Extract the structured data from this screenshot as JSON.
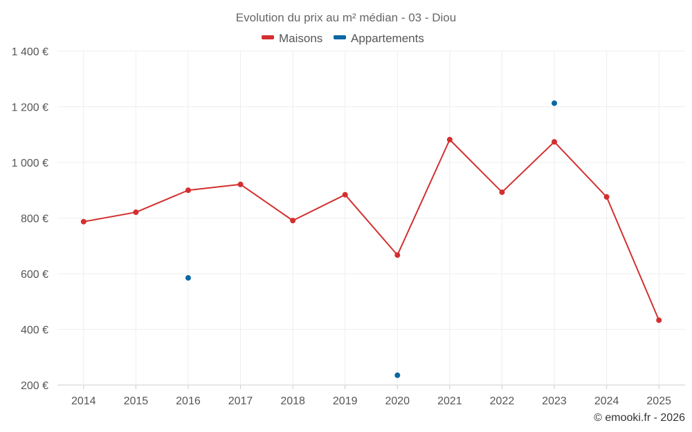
{
  "chart_data": {
    "type": "line",
    "title": "Evolution du prix au m² médian - 03 - Diou",
    "categories": [
      "2014",
      "2015",
      "2016",
      "2017",
      "2018",
      "2019",
      "2020",
      "2021",
      "2022",
      "2023",
      "2024",
      "2025"
    ],
    "ylim": [
      200,
      1400
    ],
    "yticks": [
      200,
      400,
      600,
      800,
      1000,
      1200,
      1400
    ],
    "ytick_labels": [
      "200 €",
      "400 €",
      "600 €",
      "800 €",
      "1 000 €",
      "1 200 €",
      "1 400 €"
    ],
    "series": [
      {
        "name": "Maisons",
        "color": "#d32f2f",
        "line": true,
        "values": [
          787,
          821,
          900,
          921,
          791,
          884,
          667,
          1082,
          893,
          1074,
          876,
          433
        ]
      },
      {
        "name": "Appartements",
        "color": "#0b67a3",
        "line": false,
        "values": [
          null,
          null,
          585,
          null,
          null,
          null,
          235,
          null,
          null,
          1213,
          null,
          null
        ]
      }
    ],
    "credit": "© emooki.fr - 2026"
  }
}
